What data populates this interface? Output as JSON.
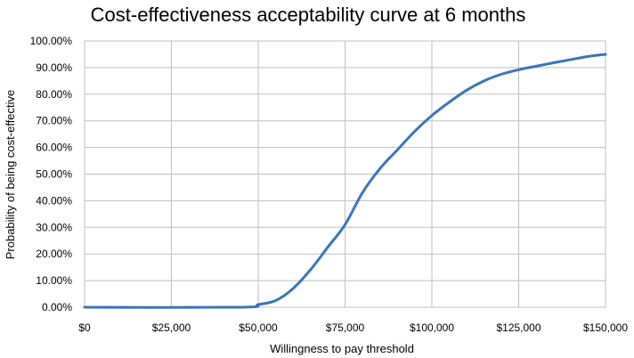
{
  "chart_data": {
    "type": "line",
    "title": "Cost-effectiveness acceptability curve at 6 months",
    "xlabel": "Willingness to pay threshold",
    "ylabel": "Probability of being cost-effective",
    "xlim": [
      0,
      150000
    ],
    "ylim": [
      0,
      1
    ],
    "grid": true,
    "x_ticks": [
      {
        "value": 0,
        "label": "$0"
      },
      {
        "value": 25000,
        "label": "$25,000"
      },
      {
        "value": 50000,
        "label": "$50,000"
      },
      {
        "value": 75000,
        "label": "$75,000"
      },
      {
        "value": 100000,
        "label": "$100,000"
      },
      {
        "value": 125000,
        "label": "$125,000"
      },
      {
        "value": 150000,
        "label": "$150,000"
      }
    ],
    "y_ticks": [
      {
        "value": 0.0,
        "label": "0.00%"
      },
      {
        "value": 0.1,
        "label": "10.00%"
      },
      {
        "value": 0.2,
        "label": "20.00%"
      },
      {
        "value": 0.3,
        "label": "30.00%"
      },
      {
        "value": 0.4,
        "label": "40.00%"
      },
      {
        "value": 0.5,
        "label": "50.00%"
      },
      {
        "value": 0.6,
        "label": "60.00%"
      },
      {
        "value": 0.7,
        "label": "70.00%"
      },
      {
        "value": 0.8,
        "label": "80.00%"
      },
      {
        "value": 0.9,
        "label": "90.00%"
      },
      {
        "value": 1.0,
        "label": "100.00%"
      }
    ],
    "series": [
      {
        "color": "#3a76b8",
        "points": [
          {
            "x": 0,
            "y": 0.0
          },
          {
            "x": 45000,
            "y": 0.0
          },
          {
            "x": 50000,
            "y": 0.01
          },
          {
            "x": 55000,
            "y": 0.025
          },
          {
            "x": 60000,
            "y": 0.07
          },
          {
            "x": 65000,
            "y": 0.14
          },
          {
            "x": 70000,
            "y": 0.225
          },
          {
            "x": 75000,
            "y": 0.31
          },
          {
            "x": 80000,
            "y": 0.43
          },
          {
            "x": 85000,
            "y": 0.52
          },
          {
            "x": 90000,
            "y": 0.59
          },
          {
            "x": 95000,
            "y": 0.66
          },
          {
            "x": 100000,
            "y": 0.72
          },
          {
            "x": 105000,
            "y": 0.77
          },
          {
            "x": 110000,
            "y": 0.815
          },
          {
            "x": 115000,
            "y": 0.85
          },
          {
            "x": 120000,
            "y": 0.875
          },
          {
            "x": 125000,
            "y": 0.892
          },
          {
            "x": 130000,
            "y": 0.905
          },
          {
            "x": 135000,
            "y": 0.918
          },
          {
            "x": 140000,
            "y": 0.93
          },
          {
            "x": 145000,
            "y": 0.942
          },
          {
            "x": 150000,
            "y": 0.95
          }
        ]
      }
    ]
  }
}
